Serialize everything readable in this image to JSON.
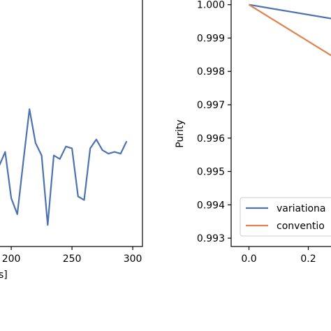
{
  "chart_data": [
    {
      "type": "line",
      "panel": "left",
      "xlabel": "s]",
      "ylabel": "",
      "xlim": [
        185,
        308
      ],
      "xticks": [
        200,
        250,
        300
      ],
      "y_scale": "arbitrary (no tick labels visible)",
      "ylim": [
        0,
        1
      ],
      "grid": false,
      "series": [
        {
          "color": "#4c72b0",
          "x": [
            185,
            190,
            195,
            200,
            205,
            210,
            215,
            220,
            225,
            230,
            235,
            240,
            245,
            250,
            255,
            260,
            265,
            270,
            275,
            280,
            285,
            290,
            295
          ],
          "y": [
            0.42,
            0.42,
            0.5,
            0.24,
            0.15,
            0.45,
            0.74,
            0.55,
            0.48,
            0.09,
            0.48,
            0.46,
            0.53,
            0.52,
            0.25,
            0.23,
            0.52,
            0.57,
            0.51,
            0.49,
            0.5,
            0.49,
            0.56
          ]
        }
      ]
    },
    {
      "type": "line",
      "panel": "right",
      "xlabel": "",
      "ylabel": "Purity",
      "xlim": [
        -0.06,
        0.3
      ],
      "ylim": [
        0.99275,
        1.00035
      ],
      "xticks": [
        0.0,
        0.2
      ],
      "yticks": [
        0.993,
        0.994,
        0.995,
        0.996,
        0.997,
        0.998,
        0.999,
        1.0
      ],
      "ytick_labels": [
        "0.993",
        "0.994",
        "0.995",
        "0.996",
        "0.997",
        "0.998",
        "0.999",
        "1.000"
      ],
      "xtick_labels": [
        "0.0",
        "0.2"
      ],
      "grid": false,
      "legend": {
        "placement": "lower-left",
        "entries": [
          "variationa",
          "conventio"
        ]
      },
      "series": [
        {
          "name": "variationa",
          "color": "#4c72b0",
          "x": [
            0.0,
            0.3
          ],
          "y": [
            1.0,
            0.99955
          ]
        },
        {
          "name": "conventio",
          "color": "#dd8452",
          "x": [
            0.0,
            0.3
          ],
          "y": [
            1.0,
            0.99835
          ]
        }
      ]
    }
  ]
}
